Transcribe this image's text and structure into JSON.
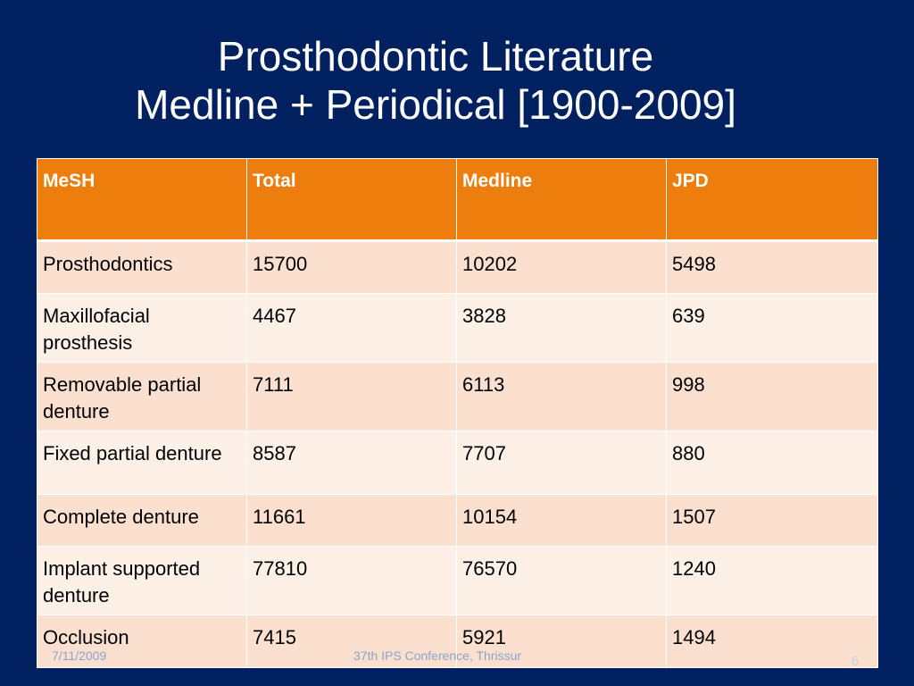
{
  "title": {
    "line1": "Prosthodontic Literature",
    "line2": "Medline + Periodical [1900-2009]"
  },
  "table": {
    "headers": [
      "MeSH",
      "Total",
      "Medline",
      "JPD"
    ],
    "rows": [
      [
        "Prosthodontics",
        "15700",
        "10202",
        "5498"
      ],
      [
        "Maxillofacial prosthesis",
        "4467",
        "3828",
        "639"
      ],
      [
        "Removable partial denture",
        "7111",
        "6113",
        "998"
      ],
      [
        "Fixed partial denture",
        "8587",
        "7707",
        "880"
      ],
      [
        "Complete denture",
        "11661",
        "10154",
        "1507"
      ],
      [
        "Implant supported denture",
        "77810",
        "76570",
        "1240"
      ],
      [
        "Occlusion",
        "7415",
        "5921",
        "1494"
      ]
    ]
  },
  "footer": {
    "date": "7/11/2009",
    "center": "37th IPS Conference, Thrissur",
    "page": "6"
  },
  "colors": {
    "background": "#002060",
    "header": "#ed7d0c",
    "row_dark": "#fbe0cf",
    "row_light": "#fcf0e7"
  }
}
